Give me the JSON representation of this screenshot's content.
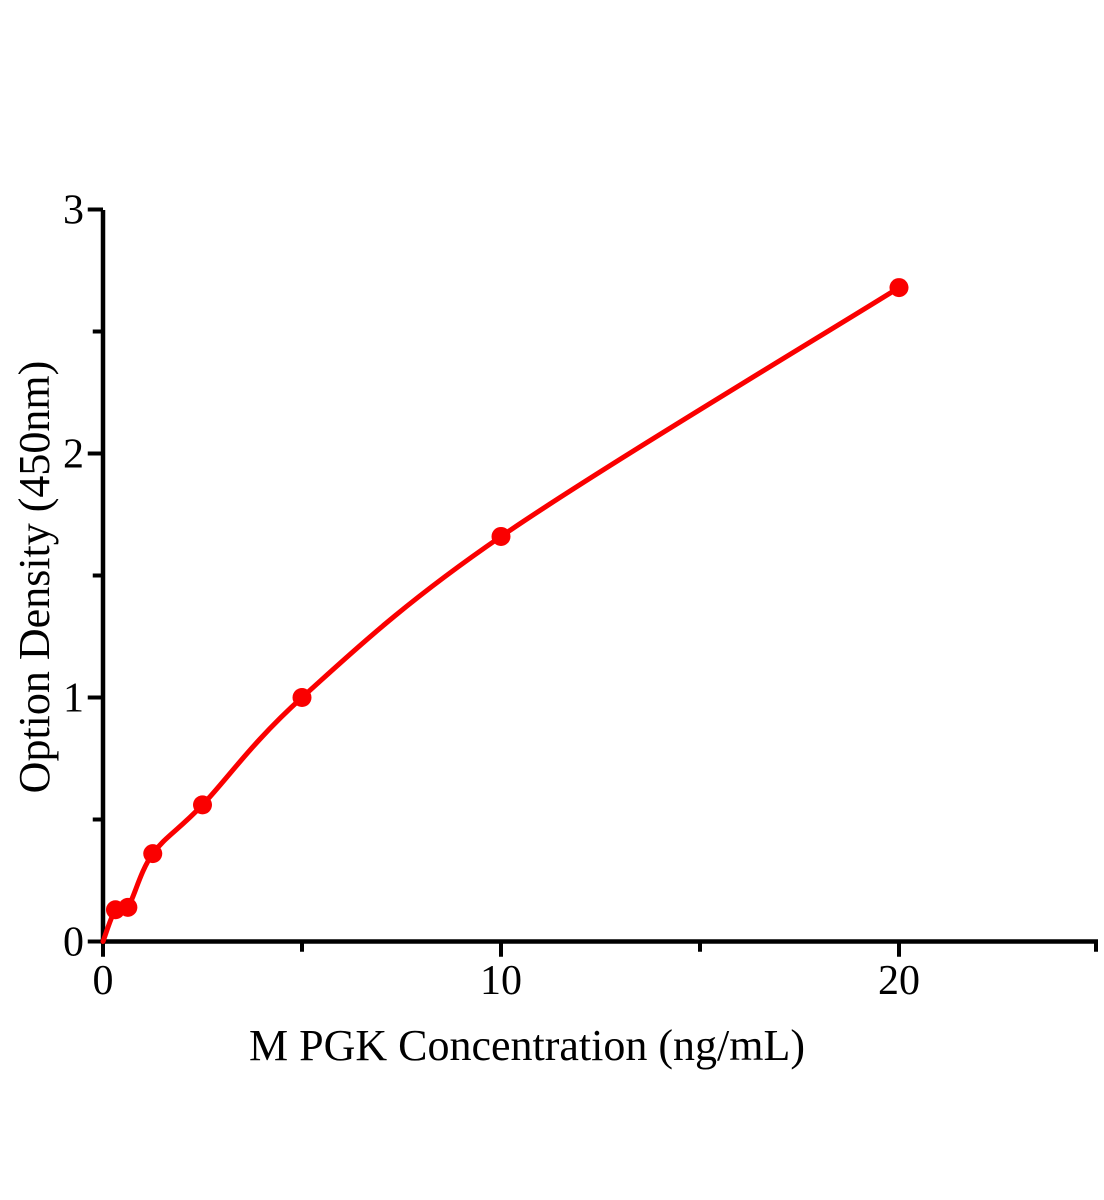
{
  "chart_data": {
    "type": "line",
    "title": "",
    "xlabel": "M PGK  Concentration (ng/mL)",
    "ylabel": "Option Density (450nm)",
    "x": [
      0.313,
      0.625,
      1.25,
      2.5,
      5,
      10,
      20
    ],
    "y": [
      0.13,
      0.14,
      0.36,
      0.56,
      1.0,
      1.66,
      2.68
    ],
    "curve_starts_at_origin": true,
    "xlim": [
      0,
      25
    ],
    "ylim": [
      0,
      3
    ],
    "x_major_ticks": [
      0,
      10,
      20
    ],
    "x_minor_ticks": [
      5,
      15,
      25
    ],
    "y_major_ticks": [
      0,
      1,
      2,
      3
    ],
    "y_minor_ticks": [
      0.5,
      1.5,
      2.5
    ],
    "x_tick_labels": [
      "0",
      "10",
      "20"
    ],
    "y_tick_labels": [
      "0",
      "1",
      "2",
      "3"
    ],
    "grid": false,
    "legend": "none",
    "marker": "circle",
    "colors": {
      "curve": "#fa0000",
      "marker": "#fa0000",
      "axis": "#000000",
      "text": "#000000"
    }
  }
}
